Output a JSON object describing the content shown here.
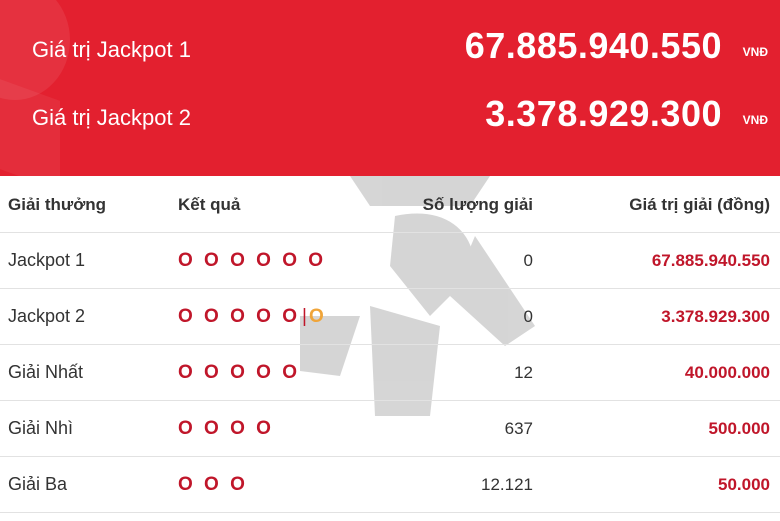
{
  "jackpots": [
    {
      "label": "Giá trị Jackpot 1",
      "amount": "67.885.940.550",
      "unit": "VNĐ"
    },
    {
      "label": "Giá trị Jackpot 2",
      "amount": "3.378.929.300",
      "unit": "VNĐ"
    }
  ],
  "table": {
    "headers": [
      "Giải thưởng",
      "Kết quả",
      "Số lượng giải",
      "Giá trị giải (đồng)"
    ],
    "rows": [
      {
        "prize": "Jackpot 1",
        "balls": "O O O O O O",
        "separator": "",
        "bonus": "",
        "count": "0",
        "value": "67.885.940.550"
      },
      {
        "prize": "Jackpot 2",
        "balls": "O O O O O",
        "separator": "|",
        "bonus": "O",
        "count": "0",
        "value": "3.378.929.300"
      },
      {
        "prize": "Giải Nhất",
        "balls": "O O O O O",
        "separator": "",
        "bonus": "",
        "count": "12",
        "value": "40.000.000"
      },
      {
        "prize": "Giải Nhì",
        "balls": "O O O O",
        "separator": "",
        "bonus": "",
        "count": "637",
        "value": "500.000"
      },
      {
        "prize": "Giải Ba",
        "balls": "O O O",
        "separator": "",
        "bonus": "",
        "count": "12.121",
        "value": "50.000"
      }
    ]
  },
  "colors": {
    "hero": "#e3202f",
    "value_red": "#c0162a",
    "bonus_orange": "#f0a53a"
  }
}
